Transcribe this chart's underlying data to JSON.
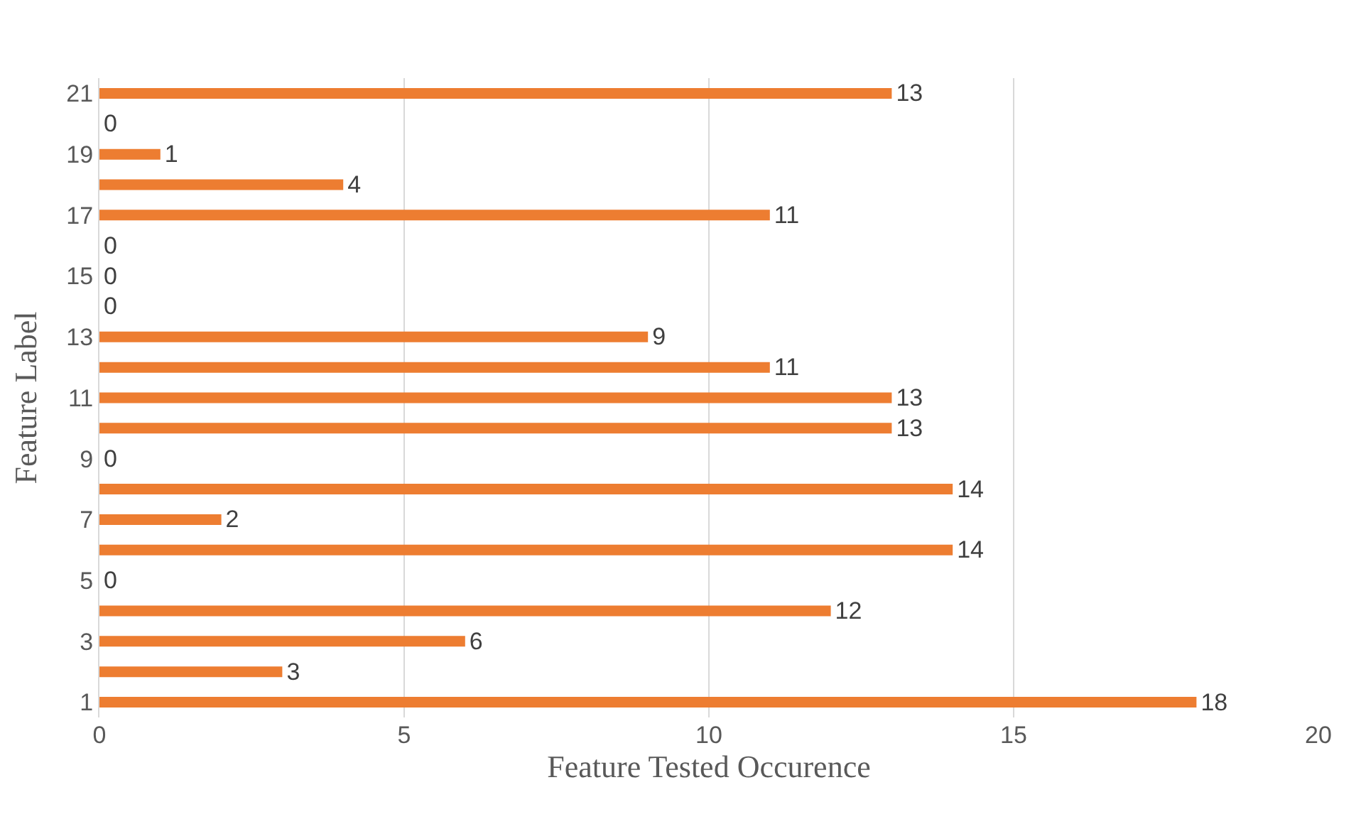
{
  "chart_data": {
    "type": "bar",
    "orientation": "horizontal",
    "xlabel": "Feature Tested Occurence",
    "ylabel": "Feature Label",
    "categories": [
      "21",
      null,
      "19",
      null,
      "17",
      null,
      "15",
      null,
      "13",
      null,
      "11",
      null,
      "9",
      null,
      "7",
      null,
      "5",
      null,
      "3",
      null,
      "1"
    ],
    "values": [
      13,
      0,
      1,
      4,
      11,
      0,
      0,
      0,
      9,
      11,
      13,
      13,
      0,
      14,
      2,
      14,
      0,
      12,
      6,
      3,
      18
    ],
    "color": "#ed7d31",
    "xlim": [
      0,
      20
    ],
    "xticks": [
      0,
      5,
      10,
      15,
      20
    ],
    "grid": "x",
    "data_labels": true,
    "legend": false
  }
}
